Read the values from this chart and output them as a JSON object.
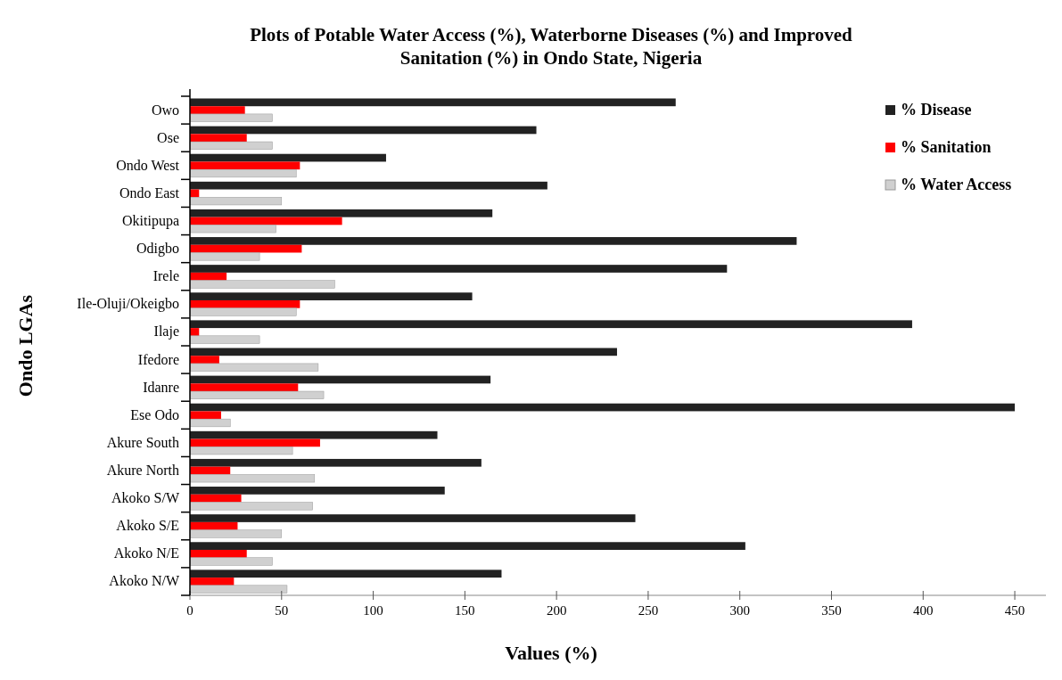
{
  "chart_data": {
    "type": "bar",
    "orientation": "horizontal",
    "title": "Plots of Potable Water Access (%),  Waterborne Diseases (%) and Improved Sanitation (%) in Ondo State, Nigeria",
    "xlabel": "Values (%)",
    "ylabel": "Ondo LGAs",
    "categories": [
      "Owo",
      "Ose",
      "Ondo West",
      "Ondo East",
      "Okitipupa",
      "Odigbo",
      "Irele",
      "Ile-Oluji/Okeigbo",
      "Ilaje",
      "Ifedore",
      "Idanre",
      "Ese Odo",
      "Akure South",
      "Akure North",
      "Akoko S/W",
      "Akoko S/E",
      "Akoko N/E",
      "Akoko N/W"
    ],
    "series": [
      {
        "name": "% Disease",
        "color": "#222222",
        "values": [
          265,
          189,
          107,
          195,
          165,
          331,
          293,
          154,
          394,
          233,
          164,
          450,
          135,
          159,
          139,
          243,
          303,
          170
        ]
      },
      {
        "name": "% Sanitation",
        "color": "#ff0000",
        "values": [
          30,
          31,
          60,
          5,
          83,
          61,
          20,
          60,
          5,
          16,
          59,
          17,
          71,
          22,
          28,
          26,
          31,
          24
        ]
      },
      {
        "name": "% Water Access",
        "color": "#d0d0d0",
        "values": [
          45,
          45,
          58,
          50,
          47,
          38,
          79,
          58,
          38,
          70,
          73,
          22,
          56,
          68,
          67,
          50,
          45,
          53
        ]
      }
    ],
    "xlim": [
      0,
      467
    ],
    "xticks": [
      0,
      50,
      100,
      150,
      200,
      250,
      300,
      350,
      400,
      450
    ],
    "grid": false,
    "legend": "top right"
  }
}
